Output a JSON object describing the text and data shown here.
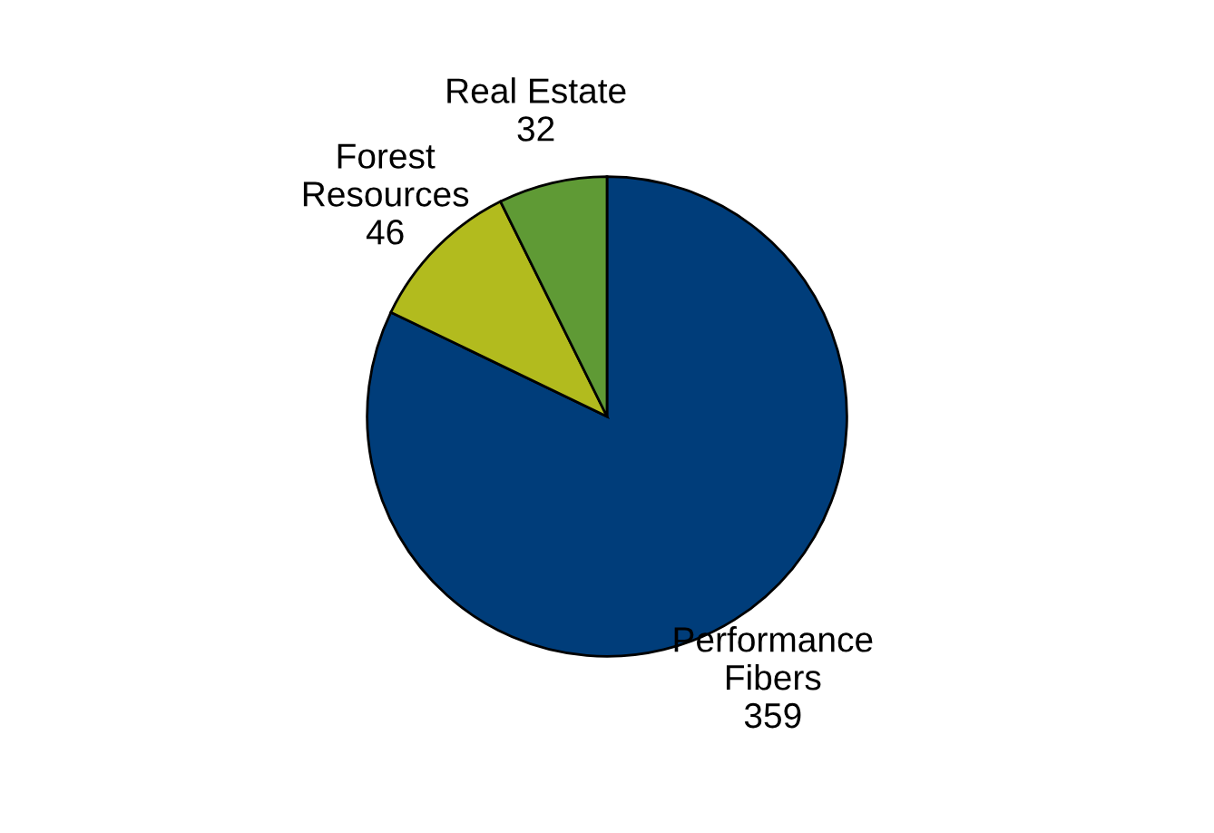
{
  "chart_data": {
    "type": "pie",
    "categories": [
      "Performance Fibers",
      "Forest Resources",
      "Real Estate"
    ],
    "values": [
      359,
      46,
      32
    ],
    "colors": [
      "#003d7a",
      "#b2bb1e",
      "#5f9a35"
    ],
    "data_labels": true,
    "legend": false
  }
}
